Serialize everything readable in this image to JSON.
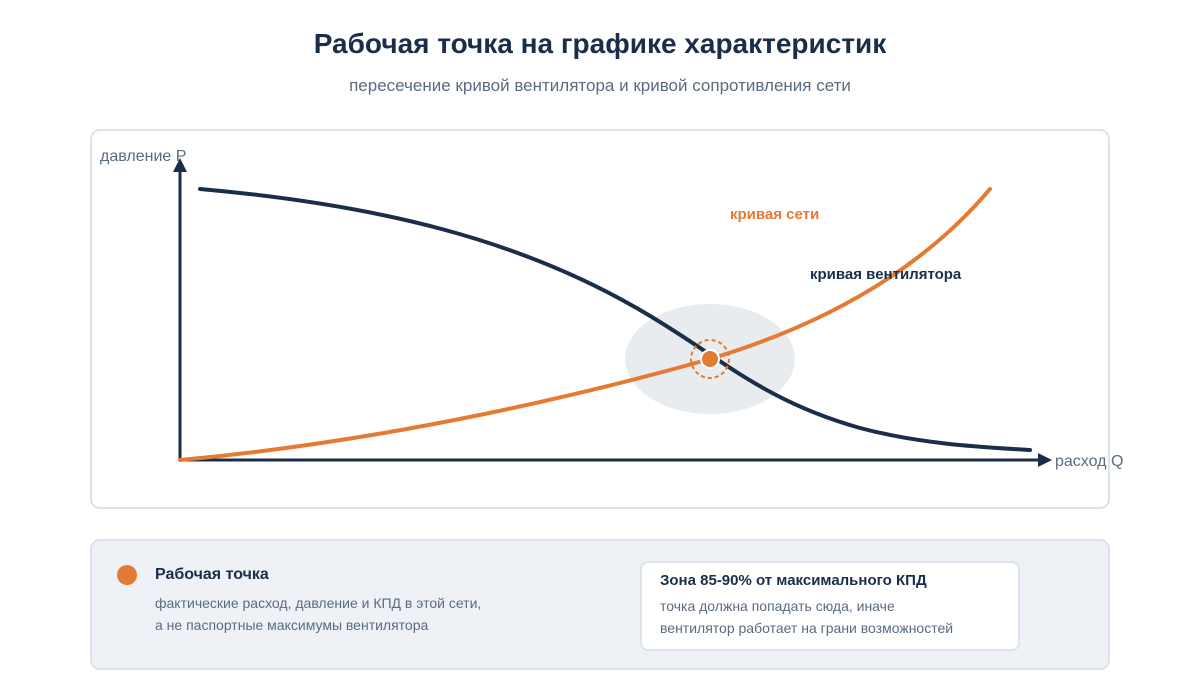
{
  "header": {
    "title": "Рабочая точка на графике характеристик",
    "subtitle": "пересечение кривой вентилятора и кривой сопротивления сети"
  },
  "diagram": {
    "y_axis_label": "давление P",
    "x_axis_label": "расход Q",
    "system_curve_label": "кривая сети",
    "fan_curve_label": "кривая вентилятора",
    "colors": {
      "fan_curve": "#1a2e4a",
      "system_curve": "#e57a32",
      "operating_zone": "#e9ecef",
      "axis": "#1a2e4a"
    }
  },
  "legend": {
    "point_title": "Рабочая точка",
    "point_desc_line1": "фактические расход, давление и КПД в этой сети,",
    "point_desc_line2": "а не паспортные максимумы вентилятора",
    "zone_title": "Зона 85-90% от максимального КПД",
    "zone_desc_line1": "точка должна попадать сюда, иначе",
    "zone_desc_line2": "вентилятор работает на грани возможностей"
  }
}
